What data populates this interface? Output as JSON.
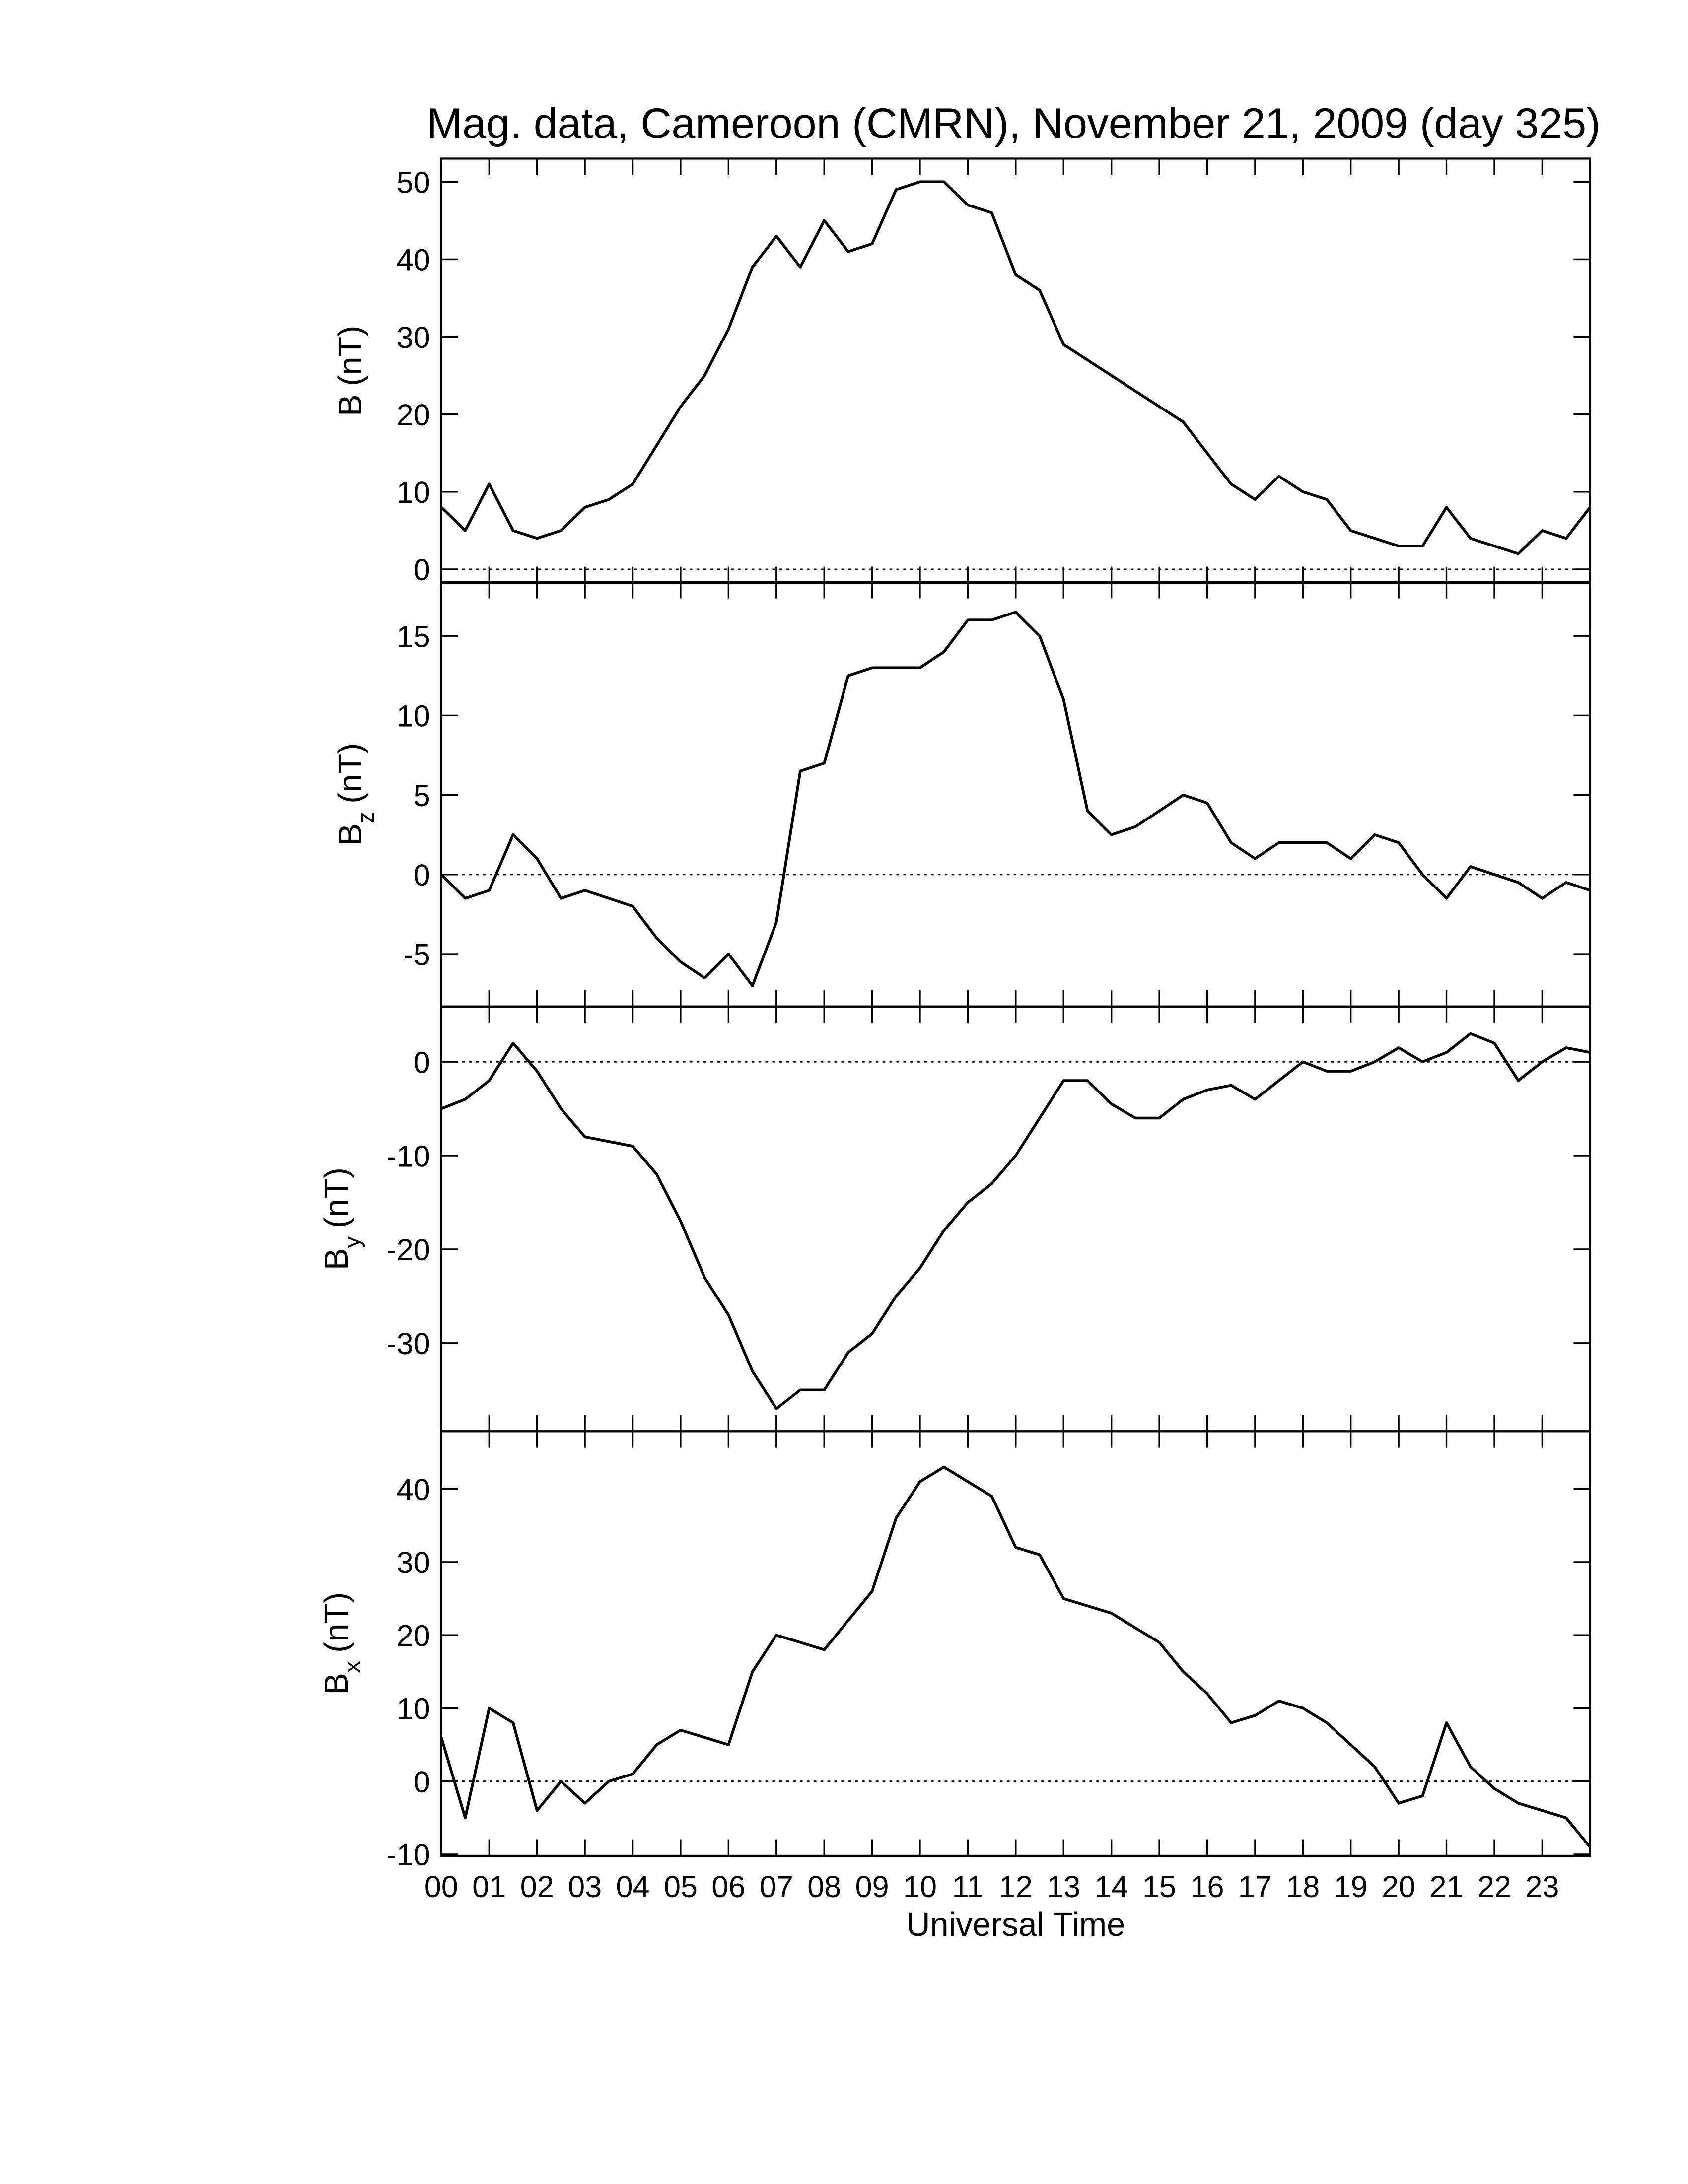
{
  "chart_data": [
    {
      "type": "line",
      "title": "Mag. data, Cameroon (CMRN), November 21, 2009 (day 325)",
      "ylabel": "B",
      "ylabel_unit": "(nT)",
      "xlim": [
        0,
        24
      ],
      "ylim": [
        -1.8,
        53
      ],
      "yticks": [
        0,
        10,
        20,
        30,
        40,
        50
      ],
      "hline": 0,
      "x": [
        0,
        0.5,
        1,
        1.5,
        2,
        2.5,
        3,
        3.5,
        4,
        4.5,
        5,
        5.5,
        6,
        6.5,
        7,
        7.5,
        8,
        8.5,
        9,
        9.5,
        10,
        10.5,
        11,
        11.5,
        12,
        12.5,
        13,
        13.5,
        14,
        14.5,
        15,
        15.5,
        16,
        16.5,
        17,
        17.5,
        18,
        18.5,
        19,
        19.5,
        20,
        20.5,
        21,
        21.5,
        22,
        22.5,
        23,
        23.5,
        24
      ],
      "series": [
        {
          "color": "#000000",
          "values": [
            8,
            5,
            11,
            5,
            4,
            5,
            8,
            9,
            11,
            16,
            21,
            25,
            31,
            39,
            43,
            39,
            45,
            41,
            42,
            49,
            50,
            50,
            47,
            46,
            38,
            36,
            29,
            27,
            25,
            23,
            21,
            19,
            15,
            11,
            9,
            12,
            10,
            9,
            5,
            4,
            3,
            3,
            8,
            4,
            3,
            2,
            5,
            4,
            8
          ]
        }
      ]
    },
    {
      "type": "line",
      "ylabel": "B",
      "ylabel_sub": "z",
      "ylabel_unit": "(nT)",
      "xlim": [
        0,
        24
      ],
      "ylim": [
        -8.3,
        18.4
      ],
      "yticks": [
        -5,
        0,
        5,
        10,
        15
      ],
      "hline": 0,
      "x": [
        0,
        0.5,
        1,
        1.5,
        2,
        2.5,
        3,
        3.5,
        4,
        4.5,
        5,
        5.5,
        6,
        6.5,
        7,
        7.5,
        8,
        8.5,
        9,
        9.5,
        10,
        10.5,
        11,
        11.5,
        12,
        12.5,
        13,
        13.5,
        14,
        14.5,
        15,
        15.5,
        16,
        16.5,
        17,
        17.5,
        18,
        18.5,
        19,
        19.5,
        20,
        20.5,
        21,
        21.5,
        22,
        22.5,
        23,
        23.5,
        24
      ],
      "series": [
        {
          "color": "#000000",
          "values": [
            0,
            -1.5,
            -1,
            2.5,
            1,
            -1.5,
            -1,
            -1.5,
            -2,
            -4,
            -5.5,
            -6.5,
            -5,
            -7,
            -3,
            6.5,
            7,
            12.5,
            13,
            13,
            13,
            14,
            16,
            16,
            16.5,
            15,
            11,
            4,
            2.5,
            3,
            4,
            5,
            4.5,
            2,
            1,
            2,
            2,
            2,
            1,
            2.5,
            2,
            0,
            -1.5,
            0.5,
            0,
            -0.5,
            -1.5,
            -0.5,
            -1
          ]
        }
      ]
    },
    {
      "type": "line",
      "ylabel": "B",
      "ylabel_sub": "y",
      "ylabel_unit": "(nT)",
      "xlim": [
        0,
        24
      ],
      "ylim": [
        -39.4,
        5.9
      ],
      "yticks": [
        -30,
        -20,
        -10,
        0
      ],
      "hline": 0,
      "x": [
        0,
        0.5,
        1,
        1.5,
        2,
        2.5,
        3,
        3.5,
        4,
        4.5,
        5,
        5.5,
        6,
        6.5,
        7,
        7.5,
        8,
        8.5,
        9,
        9.5,
        10,
        10.5,
        11,
        11.5,
        12,
        12.5,
        13,
        13.5,
        14,
        14.5,
        15,
        15.5,
        16,
        16.5,
        17,
        17.5,
        18,
        18.5,
        19,
        19.5,
        20,
        20.5,
        21,
        21.5,
        22,
        22.5,
        23,
        23.5,
        24
      ],
      "series": [
        {
          "color": "#000000",
          "values": [
            -5,
            -4,
            -2,
            2,
            -1,
            -5,
            -8,
            -8.5,
            -9,
            -12,
            -17,
            -23,
            -27,
            -33,
            -37,
            -35,
            -35,
            -31,
            -29,
            -25,
            -22,
            -18,
            -15,
            -13,
            -10,
            -6,
            -2,
            -2,
            -4.5,
            -6,
            -6,
            -4,
            -3,
            -2.5,
            -4,
            -2,
            0,
            -1,
            -1,
            0,
            1.5,
            0,
            1,
            3,
            2,
            -2,
            0,
            1.5,
            1
          ]
        }
      ]
    },
    {
      "type": "line",
      "ylabel": "B",
      "ylabel_sub": "x",
      "ylabel_unit": "(nT)",
      "xlabel": "Universal Time",
      "xlim": [
        0,
        24
      ],
      "ylim": [
        -10.2,
        47.9
      ],
      "yticks": [
        -10,
        0,
        10,
        20,
        30,
        40
      ],
      "hline": 0,
      "xticks": [
        {
          "value": 0,
          "label": "00"
        },
        {
          "value": 1,
          "label": "01"
        },
        {
          "value": 2,
          "label": "02"
        },
        {
          "value": 3,
          "label": "03"
        },
        {
          "value": 4,
          "label": "04"
        },
        {
          "value": 5,
          "label": "05"
        },
        {
          "value": 6,
          "label": "06"
        },
        {
          "value": 7,
          "label": "07"
        },
        {
          "value": 8,
          "label": "08"
        },
        {
          "value": 9,
          "label": "09"
        },
        {
          "value": 10,
          "label": "10"
        },
        {
          "value": 11,
          "label": "11"
        },
        {
          "value": 12,
          "label": "12"
        },
        {
          "value": 13,
          "label": "13"
        },
        {
          "value": 14,
          "label": "14"
        },
        {
          "value": 15,
          "label": "15"
        },
        {
          "value": 16,
          "label": "16"
        },
        {
          "value": 17,
          "label": "17"
        },
        {
          "value": 18,
          "label": "18"
        },
        {
          "value": 19,
          "label": "19"
        },
        {
          "value": 20,
          "label": "20"
        },
        {
          "value": 21,
          "label": "21"
        },
        {
          "value": 22,
          "label": "22"
        },
        {
          "value": 23,
          "label": "23"
        }
      ],
      "x": [
        0,
        0.5,
        1,
        1.5,
        2,
        2.5,
        3,
        3.5,
        4,
        4.5,
        5,
        5.5,
        6,
        6.5,
        7,
        7.5,
        8,
        8.5,
        9,
        9.5,
        10,
        10.5,
        11,
        11.5,
        12,
        12.5,
        13,
        13.5,
        14,
        14.5,
        15,
        15.5,
        16,
        16.5,
        17,
        17.5,
        18,
        18.5,
        19,
        19.5,
        20,
        20.5,
        21,
        21.5,
        22,
        22.5,
        23,
        23.5,
        24
      ],
      "series": [
        {
          "color": "#000000",
          "values": [
            6,
            -5,
            10,
            8,
            -4,
            0,
            -3,
            0,
            1,
            5,
            7,
            6,
            5,
            15,
            20,
            19,
            18,
            22,
            26,
            36,
            41,
            43,
            41,
            39,
            32,
            31,
            25,
            24,
            23,
            21,
            19,
            15,
            12,
            8,
            9,
            11,
            10,
            8,
            5,
            2,
            -3,
            -2,
            8,
            2,
            -1,
            -3,
            -4,
            -5,
            -9
          ]
        }
      ]
    }
  ]
}
